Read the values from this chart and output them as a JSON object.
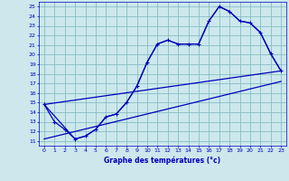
{
  "xlabel": "Graphe des températures (°c)",
  "bg_color": "#cce8ec",
  "grid_color": "#88bcc4",
  "line_color": "#0000bb",
  "xlim": [
    -0.5,
    23.5
  ],
  "ylim": [
    10.5,
    25.5
  ],
  "yticks": [
    11,
    12,
    13,
    14,
    15,
    16,
    17,
    18,
    19,
    20,
    21,
    22,
    23,
    24,
    25
  ],
  "xticks": [
    0,
    1,
    2,
    3,
    4,
    5,
    6,
    7,
    8,
    9,
    10,
    11,
    12,
    13,
    14,
    15,
    16,
    17,
    18,
    19,
    20,
    21,
    22,
    23
  ],
  "series_markers": {
    "x": [
      0,
      1,
      2,
      3,
      4,
      5,
      6,
      7,
      8,
      9,
      10,
      11,
      12,
      13,
      14,
      15,
      16,
      17,
      18,
      19,
      20,
      21,
      22,
      23
    ],
    "y": [
      14.8,
      13.0,
      12.2,
      11.2,
      11.5,
      12.2,
      13.5,
      13.8,
      15.0,
      16.7,
      19.2,
      21.1,
      21.5,
      21.1,
      21.1,
      21.1,
      23.5,
      25.0,
      24.5,
      23.5,
      23.3,
      22.3,
      20.1,
      18.3
    ]
  },
  "series_envelope": {
    "x": [
      0,
      3,
      4,
      5,
      6,
      7,
      8,
      9,
      10,
      11,
      12,
      13,
      14,
      15,
      16,
      17,
      18,
      19,
      20,
      21,
      22,
      23
    ],
    "y": [
      14.8,
      11.2,
      11.5,
      12.2,
      13.5,
      13.8,
      15.0,
      16.7,
      19.2,
      21.1,
      21.5,
      21.1,
      21.1,
      21.1,
      23.5,
      25.0,
      24.5,
      23.5,
      23.3,
      22.3,
      20.1,
      18.3
    ]
  },
  "line_top": {
    "x": [
      0,
      23
    ],
    "y": [
      14.8,
      18.3
    ]
  },
  "line_bottom": {
    "x": [
      0,
      23
    ],
    "y": [
      11.2,
      17.2
    ]
  }
}
